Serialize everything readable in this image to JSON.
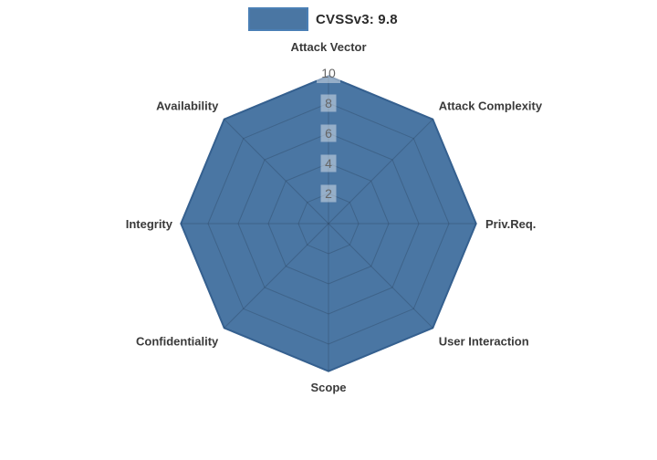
{
  "chart_data": {
    "type": "radar",
    "title": "",
    "categories": [
      "Attack Vector",
      "Attack Complexity",
      "Priv.Req.",
      "User Interaction",
      "Scope",
      "Confidentiality",
      "Integrity",
      "Availability"
    ],
    "series": [
      {
        "name": "CVSSv3: 9.8",
        "values": [
          9.8,
          9.8,
          9.8,
          9.8,
          9.8,
          9.8,
          9.8,
          9.8
        ]
      }
    ],
    "rticks": [
      2,
      4,
      6,
      8,
      10
    ],
    "rlim": [
      0,
      10
    ],
    "grid": true,
    "legend_position": "top",
    "colors": {
      "fill": "#4a76a3",
      "stroke": "#35608f",
      "grid_line": "rgba(35,55,80,0.30)",
      "tick_text": "#666666",
      "tick_backdrop": "rgba(255,255,255,0.42)",
      "axis_label": "#3a3a3a",
      "legend_swatch_border": "#4a7fb5",
      "legend_text": "#2b2b2b"
    }
  }
}
